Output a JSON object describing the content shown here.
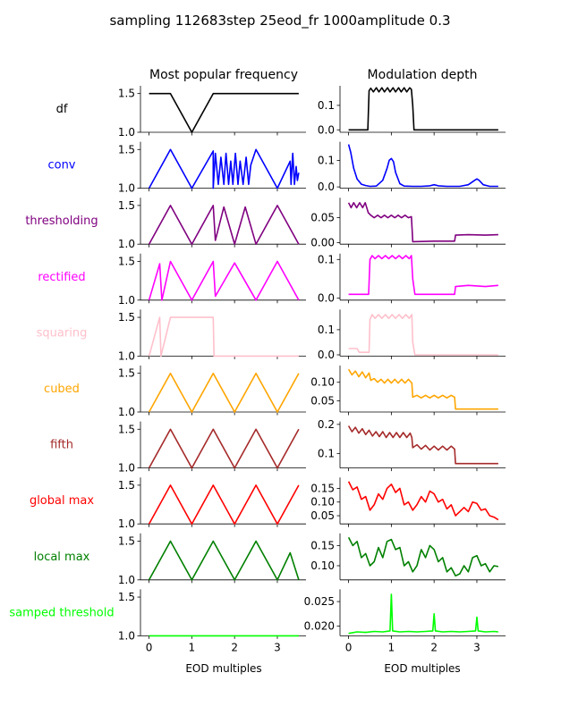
{
  "figure": {
    "title": "sampling 112683step 25eod_fr 1000amplitude 0.3",
    "col_titles": [
      "Most popular frequency",
      "Modulation depth"
    ],
    "xlabel": "EOD multiples",
    "x_ticks": [
      "0",
      "1",
      "2",
      "3"
    ]
  },
  "chart_data": [
    {
      "type": "line",
      "row": "df",
      "color": "#000000",
      "panel": "Most popular frequency",
      "ylim": [
        1.0,
        1.6
      ],
      "yticks": [
        "1.0",
        "1.5"
      ],
      "x": [
        0,
        0.5,
        1.0,
        1.5,
        3.5
      ],
      "y": [
        1.5,
        1.5,
        1.0,
        1.5,
        1.5
      ]
    },
    {
      "type": "line",
      "row": "df",
      "color": "#000000",
      "panel": "Modulation depth",
      "ylim": [
        -0.01,
        0.18
      ],
      "yticks": [
        "0.0",
        "0.1"
      ],
      "x": [
        0,
        0.45,
        0.48,
        0.52,
        0.58,
        0.65,
        0.71,
        0.78,
        0.84,
        0.91,
        0.97,
        1.04,
        1.1,
        1.17,
        1.23,
        1.3,
        1.36,
        1.43,
        1.47,
        1.5,
        1.53,
        3.5
      ],
      "y": [
        0,
        0,
        0.16,
        0.17,
        0.155,
        0.172,
        0.155,
        0.172,
        0.155,
        0.172,
        0.155,
        0.172,
        0.155,
        0.172,
        0.155,
        0.172,
        0.155,
        0.172,
        0.165,
        0.1,
        0,
        0
      ]
    },
    {
      "type": "line",
      "row": "conv",
      "color": "#0000ff",
      "panel": "Most popular frequency",
      "ylim": [
        1.0,
        1.6
      ],
      "yticks": [
        "1.0",
        "1.5"
      ],
      "x": [
        0,
        0.5,
        1.0,
        1.5,
        1.5,
        1.55,
        1.62,
        1.68,
        1.75,
        1.8,
        1.86,
        1.91,
        1.96,
        2.02,
        2.08,
        2.13,
        2.2,
        2.27,
        2.33,
        2.38,
        2.5,
        3.0,
        3.3,
        3.32,
        3.36,
        3.4,
        3.44,
        3.47,
        3.5
      ],
      "y": [
        1.0,
        1.5,
        1.0,
        1.48,
        1.0,
        1.45,
        1.05,
        1.4,
        1.05,
        1.45,
        1.05,
        1.35,
        1.05,
        1.45,
        1.05,
        1.35,
        1.05,
        1.4,
        1.05,
        1.3,
        1.5,
        1.0,
        1.35,
        1.05,
        1.45,
        1.05,
        1.28,
        1.1,
        1.2
      ]
    },
    {
      "type": "line",
      "row": "conv",
      "color": "#0000ff",
      "panel": "Modulation depth",
      "ylim": [
        -0.005,
        0.17
      ],
      "yticks": [
        "0.0",
        "0.1"
      ],
      "x": [
        0,
        0.05,
        0.12,
        0.2,
        0.3,
        0.4,
        0.5,
        0.65,
        0.8,
        0.9,
        0.95,
        1.0,
        1.05,
        1.1,
        1.2,
        1.3,
        1.5,
        1.7,
        1.9,
        2.0,
        2.1,
        2.3,
        2.6,
        2.8,
        2.95,
        3.0,
        3.05,
        3.15,
        3.3,
        3.5
      ],
      "y": [
        0.16,
        0.13,
        0.07,
        0.03,
        0.01,
        0.005,
        0.002,
        0.003,
        0.025,
        0.07,
        0.1,
        0.107,
        0.095,
        0.055,
        0.012,
        0.003,
        0.002,
        0.002,
        0.004,
        0.008,
        0.004,
        0.002,
        0.002,
        0.008,
        0.025,
        0.03,
        0.025,
        0.008,
        0.002,
        0.002
      ]
    },
    {
      "type": "line",
      "row": "thresholding",
      "color": "#800080",
      "panel": "Most popular frequency",
      "ylim": [
        1.0,
        1.6
      ],
      "yticks": [
        "1.0",
        "1.5"
      ],
      "x": [
        0,
        0.5,
        1.0,
        1.5,
        1.55,
        1.75,
        2.0,
        2.25,
        2.5,
        3.0,
        3.5
      ],
      "y": [
        1.0,
        1.5,
        1.0,
        1.5,
        1.05,
        1.48,
        1.0,
        1.48,
        1.0,
        1.5,
        1.0
      ]
    },
    {
      "type": "line",
      "row": "thresholding",
      "color": "#800080",
      "panel": "Modulation depth",
      "ylim": [
        -0.003,
        0.09
      ],
      "yticks": [
        "0.00",
        "0.05"
      ],
      "x": [
        0,
        0.06,
        0.12,
        0.19,
        0.26,
        0.33,
        0.39,
        0.46,
        0.52,
        0.6,
        0.68,
        0.76,
        0.84,
        0.92,
        1.0,
        1.08,
        1.16,
        1.24,
        1.32,
        1.4,
        1.47,
        1.49,
        1.5,
        2.0,
        2.48,
        2.5,
        2.8,
        3.2,
        3.5
      ],
      "y": [
        0.08,
        0.07,
        0.08,
        0.07,
        0.08,
        0.07,
        0.08,
        0.06,
        0.055,
        0.05,
        0.055,
        0.05,
        0.055,
        0.05,
        0.055,
        0.05,
        0.055,
        0.05,
        0.055,
        0.05,
        0.052,
        0.02,
        0.002,
        0.003,
        0.003,
        0.015,
        0.016,
        0.015,
        0.016
      ]
    },
    {
      "type": "line",
      "row": "rectified",
      "color": "#ff00ff",
      "panel": "Most popular frequency",
      "ylim": [
        1.0,
        1.6
      ],
      "yticks": [
        "1.0",
        "1.5"
      ],
      "x": [
        0,
        0.25,
        0.3,
        0.5,
        1.0,
        1.5,
        1.55,
        2.0,
        2.5,
        3.0,
        3.5
      ],
      "y": [
        1.0,
        1.47,
        1.0,
        1.5,
        1.0,
        1.5,
        1.05,
        1.48,
        1.0,
        1.5,
        1.0
      ]
    },
    {
      "type": "line",
      "row": "rectified",
      "color": "#ff00ff",
      "panel": "Modulation depth",
      "ylim": [
        -0.005,
        0.115
      ],
      "yticks": [
        "0.0",
        "0.1"
      ],
      "x": [
        0,
        0.4,
        0.47,
        0.5,
        0.55,
        0.62,
        0.7,
        0.78,
        0.86,
        0.94,
        1.02,
        1.1,
        1.18,
        1.26,
        1.34,
        1.42,
        1.47,
        1.5,
        1.55,
        2.48,
        2.5,
        2.8,
        3.2,
        3.5
      ],
      "y": [
        0.01,
        0.01,
        0.01,
        0.1,
        0.11,
        0.102,
        0.11,
        0.102,
        0.11,
        0.102,
        0.11,
        0.102,
        0.11,
        0.102,
        0.11,
        0.102,
        0.11,
        0.05,
        0.01,
        0.01,
        0.03,
        0.033,
        0.03,
        0.033
      ]
    },
    {
      "type": "line",
      "row": "squaring",
      "color": "#ffc0cb",
      "panel": "Most popular frequency",
      "ylim": [
        1.0,
        1.6
      ],
      "yticks": [
        "1.0",
        "1.5"
      ],
      "x": [
        0,
        0.25,
        0.28,
        0.5,
        1.5,
        1.52,
        3.5
      ],
      "y": [
        1.0,
        1.5,
        1.0,
        1.5,
        1.5,
        1.0,
        1.0
      ]
    },
    {
      "type": "line",
      "row": "squaring",
      "color": "#ffc0cb",
      "panel": "Modulation depth",
      "ylim": [
        -0.005,
        0.18
      ],
      "yticks": [
        "0.0",
        "0.1"
      ],
      "x": [
        0,
        0.2,
        0.25,
        0.48,
        0.5,
        0.55,
        0.62,
        0.7,
        0.78,
        0.86,
        0.94,
        1.02,
        1.1,
        1.18,
        1.26,
        1.34,
        1.42,
        1.48,
        1.5,
        1.55,
        3.5
      ],
      "y": [
        0.025,
        0.025,
        0.01,
        0.01,
        0.14,
        0.16,
        0.145,
        0.16,
        0.145,
        0.16,
        0.145,
        0.16,
        0.145,
        0.16,
        0.145,
        0.16,
        0.145,
        0.16,
        0.05,
        0.0,
        0.0
      ]
    },
    {
      "type": "line",
      "row": "cubed",
      "color": "#ffa500",
      "panel": "Most popular frequency",
      "ylim": [
        1.0,
        1.6
      ],
      "yticks": [
        "1.0",
        "1.5"
      ],
      "x": [
        0,
        0.5,
        1.0,
        1.5,
        2.0,
        2.5,
        3.0,
        3.5
      ],
      "y": [
        1.0,
        1.5,
        1.0,
        1.5,
        1.0,
        1.5,
        1.0,
        1.5
      ]
    },
    {
      "type": "line",
      "row": "cubed",
      "color": "#ffa500",
      "panel": "Modulation depth",
      "ylim": [
        0.02,
        0.145
      ],
      "yticks": [
        "0.05",
        "0.10"
      ],
      "x": [
        0,
        0.08,
        0.16,
        0.24,
        0.32,
        0.4,
        0.48,
        0.52,
        0.6,
        0.68,
        0.76,
        0.84,
        0.92,
        1.0,
        1.08,
        1.16,
        1.24,
        1.32,
        1.4,
        1.48,
        1.5,
        1.6,
        1.7,
        1.8,
        1.9,
        2.0,
        2.1,
        2.2,
        2.3,
        2.4,
        2.48,
        2.5,
        3.0,
        3.5
      ],
      "y": [
        0.135,
        0.12,
        0.13,
        0.115,
        0.128,
        0.112,
        0.125,
        0.105,
        0.11,
        0.1,
        0.108,
        0.098,
        0.108,
        0.098,
        0.108,
        0.098,
        0.108,
        0.098,
        0.108,
        0.098,
        0.06,
        0.065,
        0.058,
        0.065,
        0.058,
        0.065,
        0.058,
        0.065,
        0.058,
        0.065,
        0.06,
        0.028,
        0.028,
        0.028
      ]
    },
    {
      "type": "line",
      "row": "fifth",
      "color": "#a52a2a",
      "panel": "Most popular frequency",
      "ylim": [
        1.0,
        1.6
      ],
      "yticks": [
        "1.0",
        "1.5"
      ],
      "x": [
        0,
        0.5,
        1.0,
        1.5,
        2.0,
        2.5,
        3.0,
        3.5
      ],
      "y": [
        1.0,
        1.5,
        1.0,
        1.5,
        1.0,
        1.5,
        1.0,
        1.5
      ]
    },
    {
      "type": "line",
      "row": "fifth",
      "color": "#a52a2a",
      "panel": "Modulation depth",
      "ylim": [
        0.05,
        0.21
      ],
      "yticks": [
        "0.1",
        "0.2"
      ],
      "x": [
        0,
        0.08,
        0.16,
        0.24,
        0.32,
        0.4,
        0.48,
        0.56,
        0.64,
        0.72,
        0.8,
        0.88,
        0.96,
        1.04,
        1.12,
        1.2,
        1.28,
        1.36,
        1.44,
        1.48,
        1.5,
        1.6,
        1.7,
        1.8,
        1.9,
        2.0,
        2.1,
        2.2,
        2.3,
        2.4,
        2.48,
        2.5,
        3.0,
        3.5
      ],
      "y": [
        0.195,
        0.175,
        0.19,
        0.17,
        0.185,
        0.165,
        0.18,
        0.16,
        0.175,
        0.158,
        0.175,
        0.155,
        0.172,
        0.155,
        0.172,
        0.155,
        0.172,
        0.155,
        0.17,
        0.155,
        0.12,
        0.13,
        0.115,
        0.128,
        0.112,
        0.125,
        0.112,
        0.125,
        0.112,
        0.125,
        0.115,
        0.065,
        0.065,
        0.065
      ]
    },
    {
      "type": "line",
      "row": "global max",
      "color": "#ff0000",
      "panel": "Most popular frequency",
      "ylim": [
        1.0,
        1.6
      ],
      "yticks": [
        "1.0",
        "1.5"
      ],
      "x": [
        0,
        0.5,
        1.0,
        1.5,
        2.0,
        2.5,
        3.0,
        3.5
      ],
      "y": [
        1.0,
        1.5,
        1.0,
        1.5,
        1.0,
        1.5,
        1.0,
        1.5
      ]
    },
    {
      "type": "line",
      "row": "global max",
      "color": "#ff0000",
      "panel": "Modulation depth",
      "ylim": [
        0.02,
        0.19
      ],
      "yticks": [
        "0.05",
        "0.10",
        "0.15"
      ],
      "x": [
        0,
        0.1,
        0.2,
        0.3,
        0.4,
        0.5,
        0.6,
        0.7,
        0.8,
        0.9,
        1.0,
        1.1,
        1.2,
        1.3,
        1.4,
        1.5,
        1.6,
        1.7,
        1.8,
        1.9,
        2.0,
        2.1,
        2.2,
        2.3,
        2.4,
        2.5,
        2.6,
        2.7,
        2.8,
        2.9,
        3.0,
        3.1,
        3.2,
        3.3,
        3.4,
        3.5
      ],
      "y": [
        0.175,
        0.145,
        0.155,
        0.11,
        0.12,
        0.07,
        0.09,
        0.13,
        0.11,
        0.15,
        0.165,
        0.135,
        0.15,
        0.09,
        0.1,
        0.07,
        0.09,
        0.12,
        0.1,
        0.14,
        0.13,
        0.1,
        0.11,
        0.075,
        0.09,
        0.05,
        0.065,
        0.08,
        0.065,
        0.1,
        0.095,
        0.07,
        0.075,
        0.05,
        0.045,
        0.035
      ]
    },
    {
      "type": "line",
      "row": "local max",
      "color": "#008000",
      "panel": "Most popular frequency",
      "ylim": [
        1.0,
        1.6
      ],
      "yticks": [
        "1.0",
        "1.5"
      ],
      "x": [
        0,
        0.5,
        1.0,
        1.5,
        2.0,
        2.5,
        3.0,
        3.3,
        3.5
      ],
      "y": [
        1.0,
        1.5,
        1.0,
        1.5,
        1.0,
        1.5,
        1.0,
        1.35,
        1.0
      ]
    },
    {
      "type": "line",
      "row": "local max",
      "color": "#008000",
      "panel": "Modulation depth",
      "ylim": [
        0.065,
        0.18
      ],
      "yticks": [
        "0.10",
        "0.15"
      ],
      "x": [
        0,
        0.1,
        0.2,
        0.3,
        0.4,
        0.5,
        0.6,
        0.7,
        0.8,
        0.9,
        1.0,
        1.1,
        1.2,
        1.3,
        1.4,
        1.5,
        1.6,
        1.7,
        1.8,
        1.9,
        2.0,
        2.1,
        2.2,
        2.3,
        2.4,
        2.5,
        2.6,
        2.7,
        2.8,
        2.9,
        3.0,
        3.1,
        3.2,
        3.3,
        3.4,
        3.5
      ],
      "y": [
        0.17,
        0.15,
        0.16,
        0.12,
        0.13,
        0.1,
        0.11,
        0.145,
        0.12,
        0.16,
        0.165,
        0.14,
        0.145,
        0.1,
        0.11,
        0.085,
        0.1,
        0.14,
        0.12,
        0.15,
        0.14,
        0.11,
        0.12,
        0.085,
        0.095,
        0.075,
        0.08,
        0.1,
        0.085,
        0.12,
        0.125,
        0.1,
        0.105,
        0.085,
        0.1,
        0.098
      ]
    },
    {
      "type": "line",
      "row": "samped threshold",
      "color": "#00ff00",
      "panel": "Most popular frequency",
      "ylim": [
        1.0,
        1.6
      ],
      "yticks": [
        "1.0",
        "1.5"
      ],
      "x": [
        0,
        3.5
      ],
      "y": [
        1.0,
        1.0
      ]
    },
    {
      "type": "line",
      "row": "samped threshold",
      "color": "#00ff00",
      "panel": "Modulation depth",
      "ylim": [
        0.018,
        0.0275
      ],
      "yticks": [
        "0.020",
        "0.025"
      ],
      "x": [
        0,
        0.2,
        0.4,
        0.6,
        0.8,
        0.97,
        1.0,
        1.03,
        1.2,
        1.4,
        1.6,
        1.8,
        1.97,
        2.0,
        2.03,
        2.2,
        2.4,
        2.6,
        2.8,
        2.97,
        3.0,
        3.03,
        3.2,
        3.4,
        3.5
      ],
      "y": [
        0.0185,
        0.0188,
        0.0187,
        0.0189,
        0.0188,
        0.019,
        0.0265,
        0.019,
        0.0188,
        0.0189,
        0.0188,
        0.0189,
        0.019,
        0.0225,
        0.019,
        0.0188,
        0.0189,
        0.0188,
        0.0189,
        0.019,
        0.0218,
        0.019,
        0.0188,
        0.0189,
        0.0188
      ]
    }
  ]
}
